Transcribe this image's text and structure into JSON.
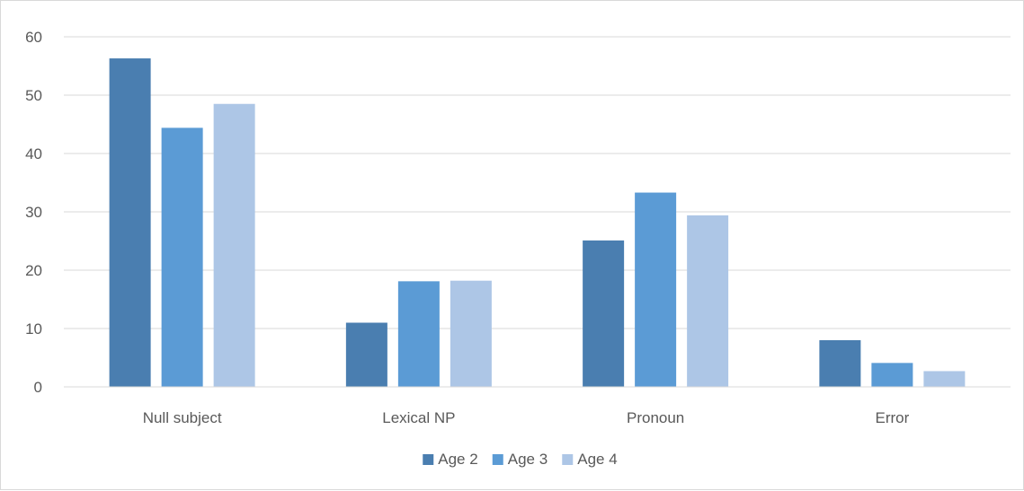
{
  "chart_data": {
    "type": "bar",
    "title": "",
    "xlabel": "",
    "ylabel": "",
    "categories": [
      "Null subject",
      "Lexical NP",
      "Pronoun",
      "Error"
    ],
    "series": [
      {
        "name": "Age 2",
        "color": "#4a7eb0",
        "values": [
          56.3,
          11.0,
          25.1,
          8.0
        ]
      },
      {
        "name": "Age 3",
        "color": "#5b9bd5",
        "values": [
          44.4,
          18.1,
          33.3,
          4.1
        ]
      },
      {
        "name": "Age 4",
        "color": "#adc6e6",
        "values": [
          48.5,
          18.2,
          29.4,
          2.7
        ]
      }
    ],
    "ylim": [
      0,
      60
    ],
    "yticks": [
      "0",
      "10",
      "20",
      "30",
      "40",
      "50",
      "60"
    ],
    "grid": true,
    "legend_position": "bottom"
  }
}
